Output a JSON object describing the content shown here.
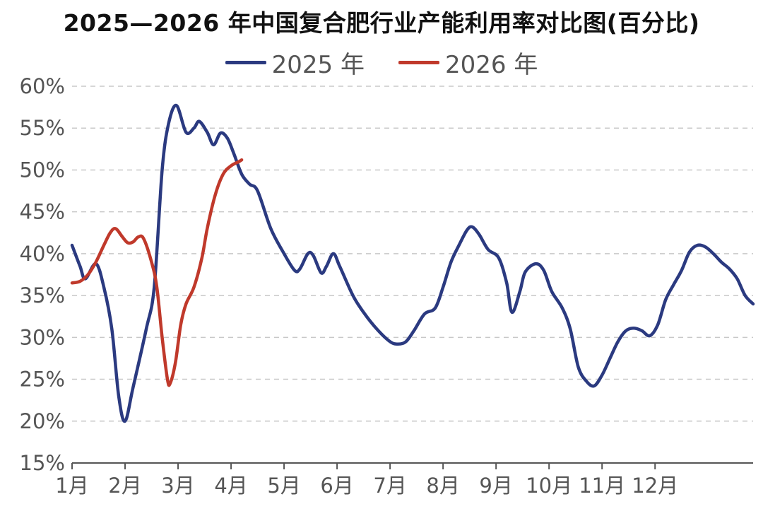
{
  "chart_data": {
    "type": "line",
    "title": "2025—2026 年中国复合肥行业产能利用率对比图(百分比)",
    "xlabel": "",
    "ylabel": "",
    "ylim": [
      15,
      60
    ],
    "y_ticks": [
      "15%",
      "20%",
      "25%",
      "30%",
      "35%",
      "40%",
      "45%",
      "50%",
      "55%",
      "60%"
    ],
    "x_ticks": [
      "1月",
      "2月",
      "3月",
      "4月",
      "5月",
      "6月",
      "7月",
      "8月",
      "9月",
      "10月",
      "11月",
      "12月"
    ],
    "grid": "horizontal dashed",
    "legend_position": "top-center",
    "series": [
      {
        "name": "2025 年",
        "color": "#2b3a80",
        "points": [
          [
            1.0,
            41
          ],
          [
            1.15,
            38.5
          ],
          [
            1.25,
            37
          ],
          [
            1.45,
            38.8
          ],
          [
            1.6,
            36
          ],
          [
            1.75,
            31
          ],
          [
            1.88,
            23
          ],
          [
            2.0,
            20
          ],
          [
            2.15,
            24
          ],
          [
            2.4,
            31
          ],
          [
            2.55,
            36
          ],
          [
            2.7,
            50
          ],
          [
            2.82,
            55.5
          ],
          [
            2.97,
            57.7
          ],
          [
            3.15,
            54.5
          ],
          [
            3.3,
            55
          ],
          [
            3.4,
            55.8
          ],
          [
            3.55,
            54.5
          ],
          [
            3.67,
            53
          ],
          [
            3.8,
            54.4
          ],
          [
            3.93,
            53.8
          ],
          [
            4.05,
            52
          ],
          [
            4.2,
            49.5
          ],
          [
            4.35,
            48.3
          ],
          [
            4.5,
            47.5
          ],
          [
            4.75,
            43
          ],
          [
            5.0,
            40
          ],
          [
            5.2,
            38
          ],
          [
            5.3,
            38.2
          ],
          [
            5.45,
            40
          ],
          [
            5.55,
            39.8
          ],
          [
            5.7,
            37.7
          ],
          [
            5.8,
            38.5
          ],
          [
            5.93,
            40
          ],
          [
            6.05,
            38.5
          ],
          [
            6.3,
            35
          ],
          [
            6.5,
            33
          ],
          [
            6.75,
            31
          ],
          [
            7.0,
            29.5
          ],
          [
            7.15,
            29.2
          ],
          [
            7.3,
            29.5
          ],
          [
            7.45,
            30.8
          ],
          [
            7.65,
            32.8
          ],
          [
            7.85,
            33.5
          ],
          [
            8.0,
            36
          ],
          [
            8.15,
            39
          ],
          [
            8.3,
            41
          ],
          [
            8.45,
            42.8
          ],
          [
            8.55,
            43.2
          ],
          [
            8.68,
            42.3
          ],
          [
            8.85,
            40.5
          ],
          [
            9.05,
            39.5
          ],
          [
            9.2,
            36.5
          ],
          [
            9.3,
            33
          ],
          [
            9.45,
            35.5
          ],
          [
            9.55,
            37.8
          ],
          [
            9.75,
            38.8
          ],
          [
            9.9,
            38
          ],
          [
            10.05,
            35.5
          ],
          [
            10.25,
            33.5
          ],
          [
            10.4,
            31
          ],
          [
            10.55,
            26.5
          ],
          [
            10.7,
            24.8
          ],
          [
            10.85,
            24.2
          ],
          [
            11.0,
            25.5
          ],
          [
            11.15,
            27.5
          ],
          [
            11.3,
            29.5
          ],
          [
            11.45,
            30.8
          ],
          [
            11.6,
            31.1
          ],
          [
            11.75,
            30.8
          ],
          [
            11.9,
            30.2
          ],
          [
            12.05,
            31.5
          ],
          [
            12.2,
            34.5
          ],
          [
            12.35,
            36.3
          ],
          [
            12.5,
            38
          ],
          [
            12.65,
            40.2
          ],
          [
            12.8,
            41
          ],
          [
            12.95,
            40.8
          ],
          [
            13.1,
            40
          ],
          [
            13.25,
            39
          ],
          [
            13.4,
            38.2
          ],
          [
            13.55,
            37
          ],
          [
            13.7,
            35
          ],
          [
            13.85,
            34
          ]
        ]
      },
      {
        "name": "2026 年",
        "color": "#c0392b",
        "points": [
          [
            1.0,
            36.5
          ],
          [
            1.15,
            36.7
          ],
          [
            1.3,
            37.5
          ],
          [
            1.45,
            39
          ],
          [
            1.6,
            41
          ],
          [
            1.72,
            42.5
          ],
          [
            1.82,
            43
          ],
          [
            1.95,
            42
          ],
          [
            2.05,
            41.3
          ],
          [
            2.15,
            41.4
          ],
          [
            2.25,
            42
          ],
          [
            2.35,
            41.8
          ],
          [
            2.5,
            39
          ],
          [
            2.6,
            36
          ],
          [
            2.7,
            30
          ],
          [
            2.8,
            25
          ],
          [
            2.85,
            24.5
          ],
          [
            2.95,
            27
          ],
          [
            3.05,
            31.5
          ],
          [
            3.15,
            34
          ],
          [
            3.3,
            36
          ],
          [
            3.45,
            39.5
          ],
          [
            3.55,
            43
          ],
          [
            3.7,
            47
          ],
          [
            3.85,
            49.5
          ],
          [
            4.0,
            50.5
          ],
          [
            4.15,
            51
          ],
          [
            4.2,
            51.2
          ]
        ]
      }
    ]
  }
}
